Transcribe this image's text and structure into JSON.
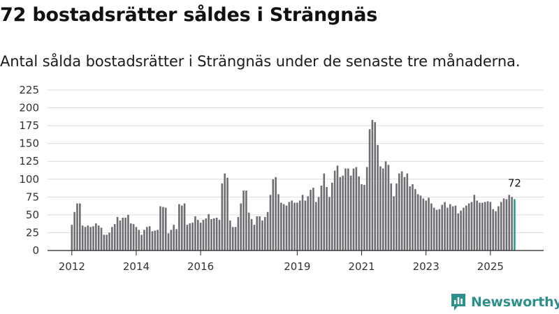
{
  "title": "72 bostadsrätter såldes i Strängnäs",
  "subtitle": "Antal sålda bostadsrätter i Strängnäs under de senaste tre månaderna.",
  "brand": {
    "name": "Newsworthy",
    "icon": "newsworthy-logo-icon"
  },
  "colors": {
    "bar": "#6e6d72",
    "highlight": "#2a9d8f",
    "grid": "#dcdcdc",
    "axis": "#222222",
    "brand": "#2f8f8a"
  },
  "chart_data": {
    "type": "bar",
    "title": "72 bostadsrätter såldes i Strängnäs",
    "xlabel": "",
    "ylabel": "",
    "ylim": [
      0,
      225
    ],
    "yticks": [
      "0",
      "25",
      "50",
      "75",
      "100",
      "125",
      "150",
      "175",
      "200",
      "225"
    ],
    "grid": true,
    "start_period": "2012-01",
    "frequency": "monthly",
    "xticks": [
      {
        "label": "2012",
        "index": 0
      },
      {
        "label": "2014",
        "index": 24
      },
      {
        "label": "2016",
        "index": 48
      },
      {
        "label": "2019",
        "index": 84
      },
      {
        "label": "2021",
        "index": 108
      },
      {
        "label": "2023",
        "index": 132
      },
      {
        "label": "2025",
        "index": 156
      }
    ],
    "highlight_label": "72",
    "values": [
      36,
      54,
      66,
      66,
      35,
      33,
      35,
      33,
      34,
      38,
      35,
      32,
      22,
      22,
      25,
      33,
      37,
      47,
      42,
      46,
      46,
      50,
      38,
      37,
      33,
      29,
      22,
      29,
      33,
      34,
      27,
      28,
      29,
      62,
      61,
      60,
      24,
      29,
      36,
      30,
      65,
      63,
      66,
      36,
      38,
      39,
      48,
      43,
      39,
      43,
      45,
      51,
      44,
      45,
      46,
      43,
      94,
      108,
      102,
      42,
      33,
      33,
      47,
      66,
      84,
      84,
      53,
      44,
      36,
      48,
      48,
      42,
      47,
      54,
      78,
      100,
      103,
      79,
      67,
      65,
      63,
      68,
      70,
      67,
      67,
      70,
      78,
      70,
      76,
      85,
      88,
      68,
      75,
      91,
      108,
      89,
      75,
      95,
      112,
      119,
      103,
      105,
      115,
      115,
      105,
      115,
      117,
      104,
      93,
      92,
      117,
      170,
      183,
      180,
      148,
      118,
      115,
      125,
      120,
      94,
      76,
      94,
      108,
      111,
      103,
      108,
      90,
      93,
      86,
      79,
      77,
      73,
      70,
      74,
      66,
      60,
      57,
      58,
      64,
      68,
      60,
      65,
      62,
      63,
      52,
      56,
      60,
      63,
      66,
      68,
      78,
      70,
      67,
      67,
      68,
      69,
      68,
      58,
      55,
      62,
      68,
      73,
      72,
      78,
      75,
      72
    ]
  }
}
